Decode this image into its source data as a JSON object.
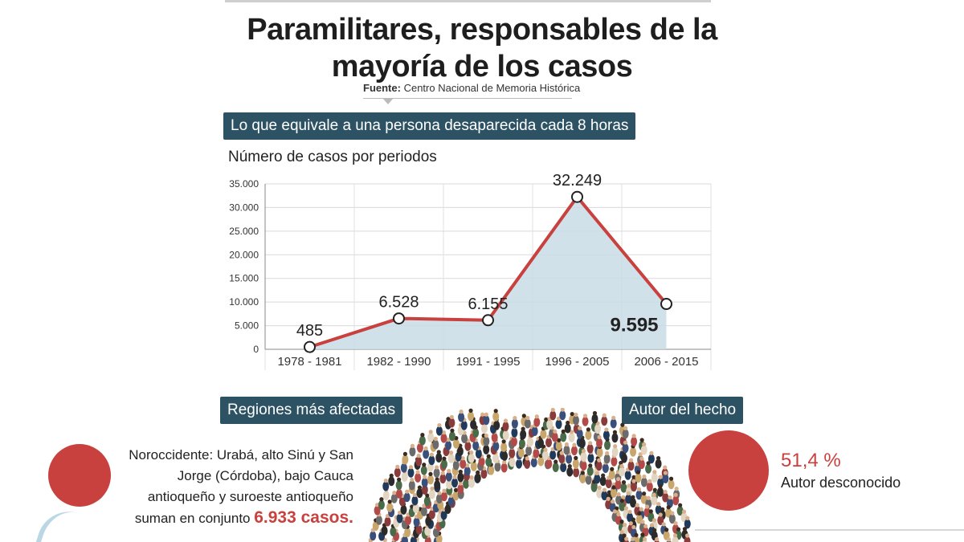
{
  "title_line1": "Paramilitares, responsables de la",
  "title_line2": "mayoría de los casos",
  "source": {
    "label": "Fuente:",
    "text": "Centro Nacional de Memoria Histórica"
  },
  "banners": {
    "top": "Lo que equivale a una persona desaparecida cada 8 horas",
    "regions": "Regiones más afectadas",
    "author": "Autor del hecho"
  },
  "chart_title": "Número de casos por periodos",
  "chart_data": {
    "type": "line",
    "categories": [
      "1978 - 1981",
      "1982 - 1990",
      "1991 - 1995",
      "1996 - 2005",
      "2006 - 2015"
    ],
    "values": [
      485,
      6528,
      6155,
      32249,
      9595
    ],
    "value_labels": [
      "485",
      "6.528",
      "6.155",
      "32.249",
      "9.595"
    ],
    "ylim": [
      0,
      35000
    ],
    "yticks": [
      0,
      5000,
      10000,
      15000,
      20000,
      25000,
      30000,
      35000
    ],
    "ytick_labels": [
      "0",
      "5.000",
      "10.000",
      "15.000",
      "20.000",
      "25.000",
      "30.000",
      "35.000"
    ],
    "grid": true,
    "line_color": "#c8413e",
    "fill_color": "#c9dce6"
  },
  "regions": {
    "text": "Noroccidente: Urabá, alto Sinú y San Jorge (Córdoba), bajo Cauca antioqueño y suroeste antioqueño suman en conjunto",
    "highlight": "6.933 casos."
  },
  "author": {
    "percent": "51,4 %",
    "label": "Autor desconocido"
  },
  "colors": {
    "accent": "#c8413e",
    "banner": "#2d5263"
  }
}
